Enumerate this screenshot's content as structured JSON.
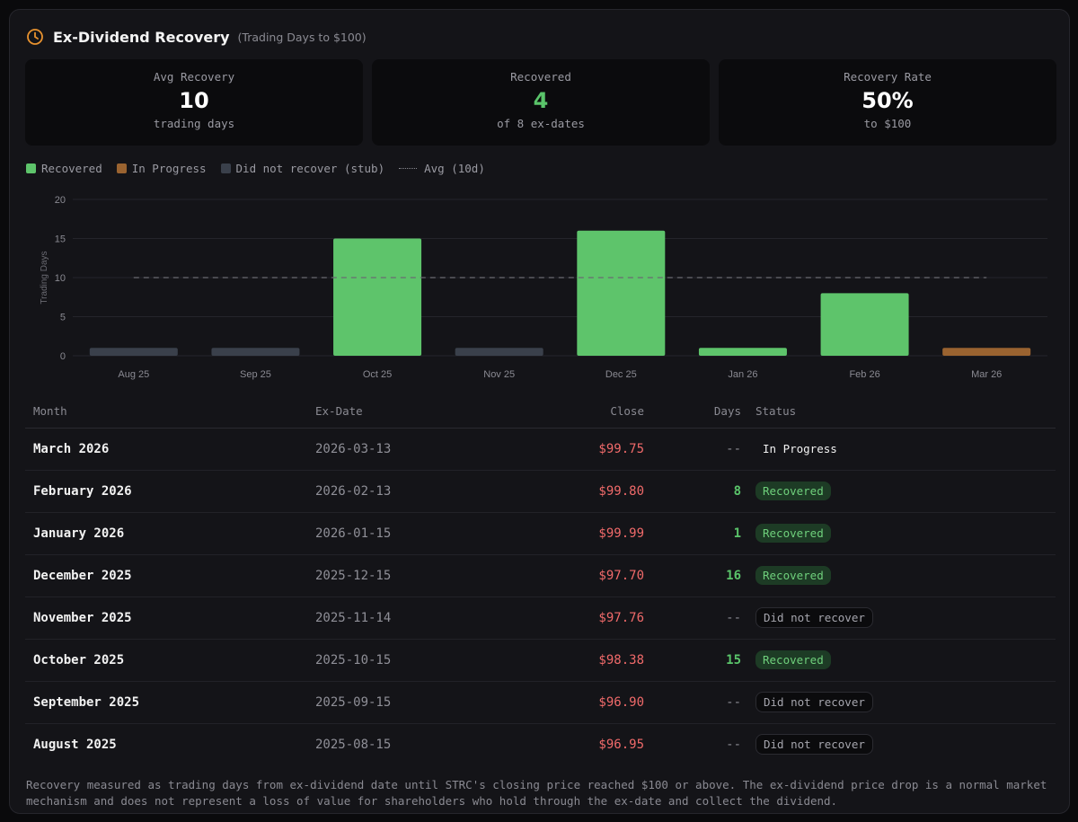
{
  "header": {
    "title": "Ex-Dividend Recovery",
    "subtitle": "(Trading Days to $100)"
  },
  "stats": [
    {
      "label": "Avg Recovery",
      "value": "10",
      "sub": "trading days"
    },
    {
      "label": "Recovered",
      "value": "4",
      "sub": "of 8 ex-dates"
    },
    {
      "label": "Recovery Rate",
      "value": "50%",
      "sub": "to $100"
    }
  ],
  "legend": {
    "recovered": "Recovered",
    "in_progress": "In Progress",
    "stub": "Did not recover (stub)",
    "avg": "Avg (10d)"
  },
  "colors": {
    "recovered": "#5ec46b",
    "in_progress": "#9a6330",
    "stub": "#3a404b",
    "red": "#f06a6a"
  },
  "chart_data": {
    "type": "bar",
    "ylabel": "Trading Days",
    "ylim": [
      0,
      20
    ],
    "yticks": [
      0,
      5,
      10,
      15,
      20
    ],
    "categories": [
      "Aug 25",
      "Sep 25",
      "Oct 25",
      "Nov 25",
      "Dec 25",
      "Jan 26",
      "Feb 26",
      "Mar 26"
    ],
    "values": [
      1,
      1,
      15,
      1,
      16,
      1,
      8,
      1
    ],
    "status": [
      "stub",
      "stub",
      "recovered",
      "stub",
      "recovered",
      "recovered",
      "recovered",
      "in_progress"
    ],
    "avg": 10,
    "grid": true
  },
  "table": {
    "headers": {
      "month": "Month",
      "date": "Ex-Date",
      "close": "Close",
      "days": "Days",
      "status": "Status"
    },
    "rows": [
      {
        "month": "March 2026",
        "date": "2026-03-13",
        "close": "$99.75",
        "days": "--",
        "status": "In Progress",
        "kind": "progress"
      },
      {
        "month": "February 2026",
        "date": "2026-02-13",
        "close": "$99.80",
        "days": "8",
        "status": "Recovered",
        "kind": "recovered"
      },
      {
        "month": "January 2026",
        "date": "2026-01-15",
        "close": "$99.99",
        "days": "1",
        "status": "Recovered",
        "kind": "recovered"
      },
      {
        "month": "December 2025",
        "date": "2025-12-15",
        "close": "$97.70",
        "days": "16",
        "status": "Recovered",
        "kind": "recovered"
      },
      {
        "month": "November 2025",
        "date": "2025-11-14",
        "close": "$97.76",
        "days": "--",
        "status": "Did not recover",
        "kind": "norec"
      },
      {
        "month": "October 2025",
        "date": "2025-10-15",
        "close": "$98.38",
        "days": "15",
        "status": "Recovered",
        "kind": "recovered"
      },
      {
        "month": "September 2025",
        "date": "2025-09-15",
        "close": "$96.90",
        "days": "--",
        "status": "Did not recover",
        "kind": "norec"
      },
      {
        "month": "August 2025",
        "date": "2025-08-15",
        "close": "$96.95",
        "days": "--",
        "status": "Did not recover",
        "kind": "norec"
      }
    ]
  },
  "footnote": "Recovery measured as trading days from ex-dividend date until STRC's closing price reached $100 or above. The ex-dividend price drop is a normal market mechanism and does not represent a loss of value for shareholders who hold through the ex-date and collect the dividend."
}
